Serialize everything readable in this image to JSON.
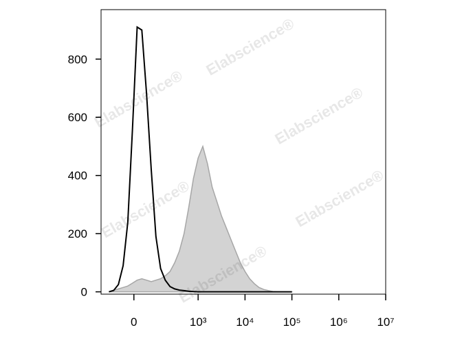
{
  "chart_data": {
    "type": "area",
    "watermark": "Elabscience®",
    "x": [
      1.1,
      1.2,
      1.3,
      1.4,
      1.5,
      1.6,
      1.7,
      1.8,
      1.9,
      2.0,
      2.1,
      2.2,
      2.3,
      2.4,
      2.5,
      2.6,
      2.7,
      2.8,
      2.9,
      3.0,
      3.1,
      3.2,
      3.3,
      3.4,
      3.5,
      3.6,
      3.7,
      3.8,
      3.9,
      4.0,
      4.1,
      4.2,
      4.3,
      4.4,
      4.5,
      4.6,
      4.7,
      4.8,
      4.9,
      5.0
    ],
    "series": [
      {
        "color": "#a6a6a6",
        "fill": "#d3d3d3",
        "values": [
          0,
          5,
          10,
          15,
          20,
          30,
          40,
          45,
          40,
          35,
          40,
          45,
          55,
          70,
          100,
          140,
          200,
          290,
          390,
          460,
          500,
          440,
          360,
          310,
          260,
          220,
          180,
          140,
          100,
          70,
          45,
          28,
          15,
          8,
          4,
          1,
          0,
          0,
          0,
          0
        ]
      },
      {
        "color": "#000000",
        "values": [
          0,
          5,
          25,
          90,
          240,
          560,
          910,
          900,
          680,
          420,
          190,
          80,
          40,
          18,
          10,
          6,
          4,
          2,
          1,
          0,
          0,
          0,
          0,
          0,
          0,
          0,
          0,
          0,
          0,
          0,
          0,
          0,
          0,
          0,
          0,
          0,
          0,
          0,
          0,
          0
        ]
      }
    ],
    "xlim": [
      0.93,
      7.0
    ],
    "xticks": [
      {
        "value": 1.63,
        "label": "0"
      },
      {
        "value": 3,
        "label": "10³"
      },
      {
        "value": 4,
        "label": "10⁴"
      },
      {
        "value": 5,
        "label": "10⁵"
      },
      {
        "value": 6,
        "label": "10⁶"
      },
      {
        "value": 7,
        "label": "10⁷"
      }
    ],
    "ylim": [
      -8,
      970
    ],
    "yticks": [
      0,
      200,
      400,
      600,
      800
    ]
  }
}
